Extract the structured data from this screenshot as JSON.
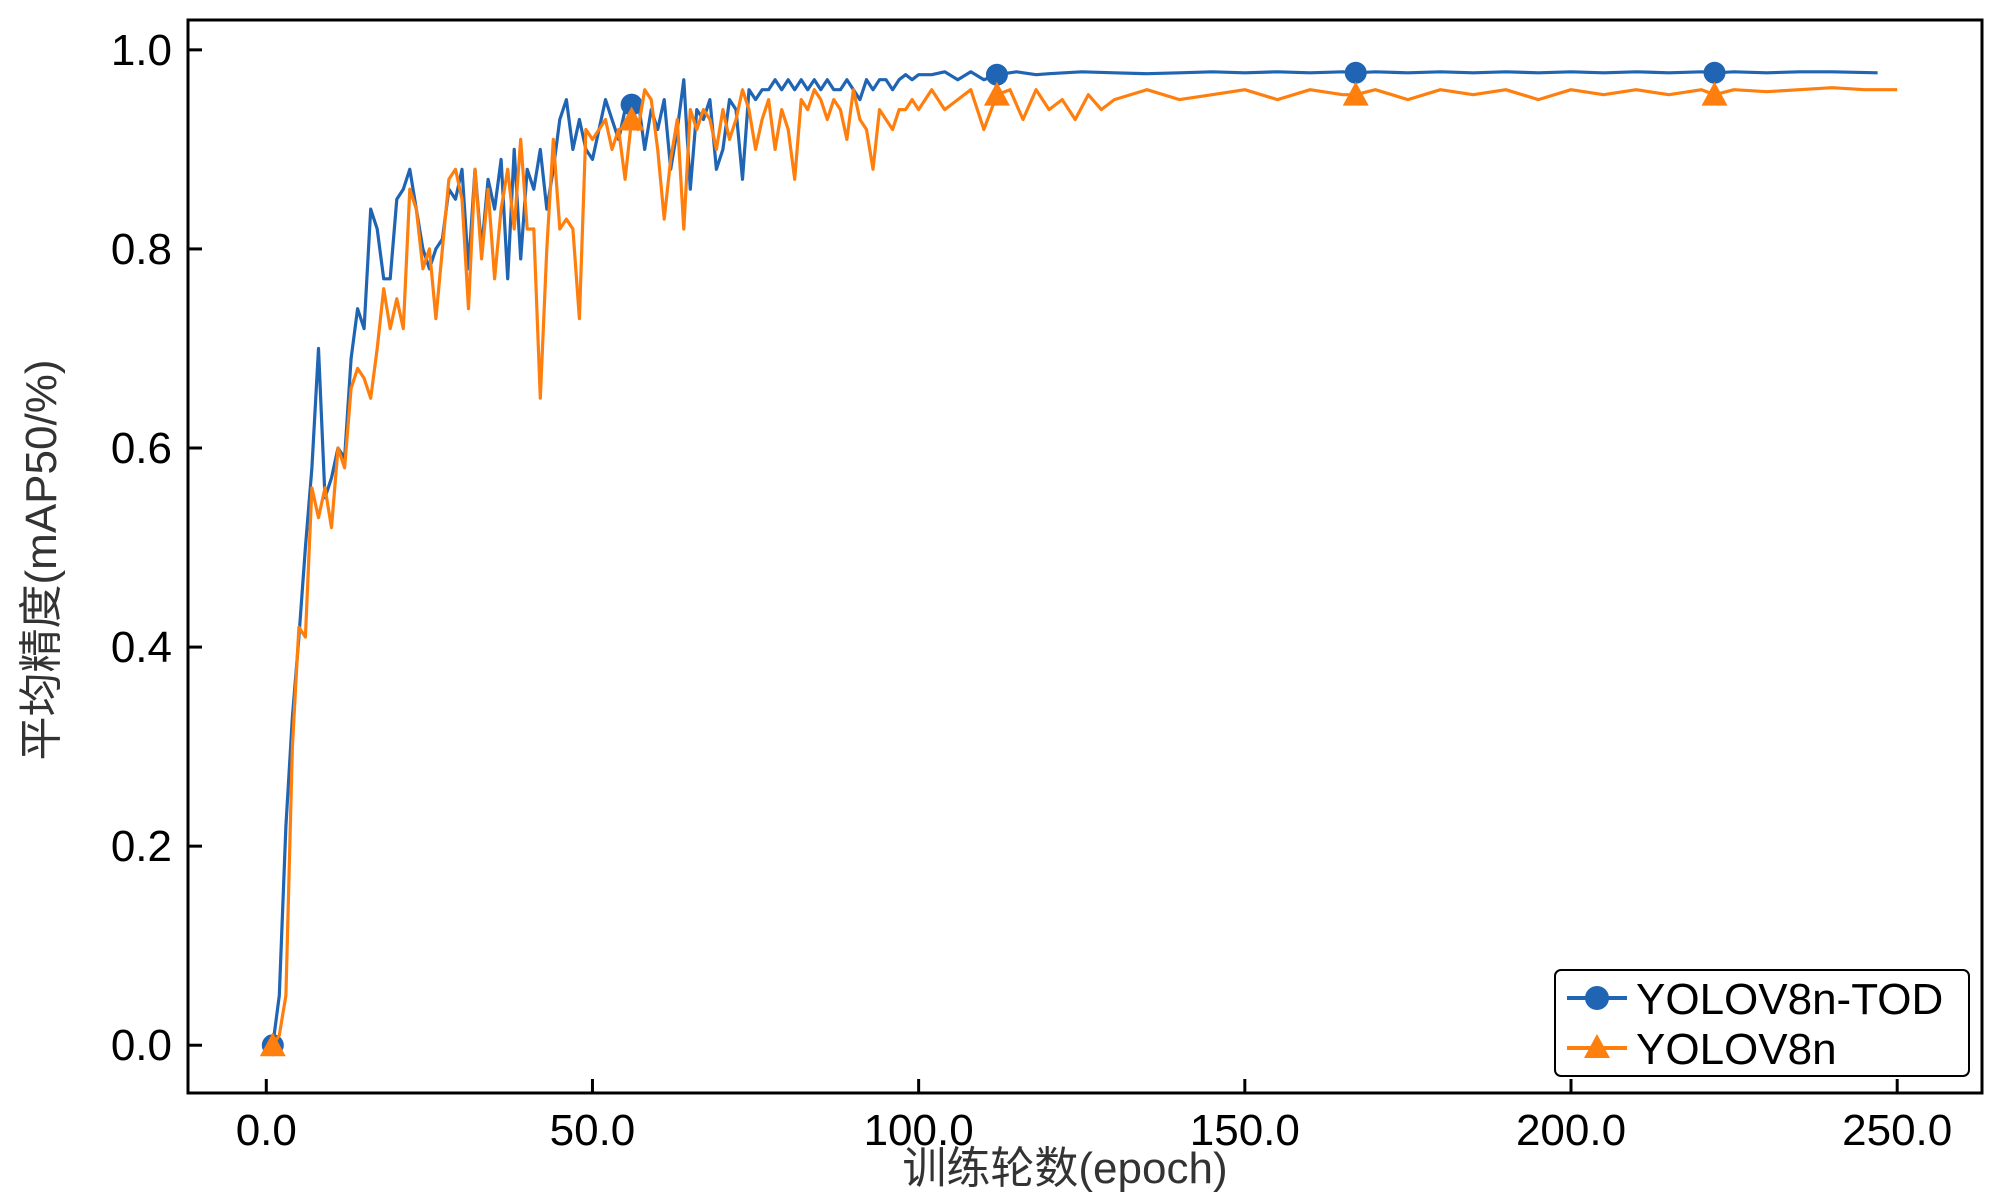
{
  "chart_data": {
    "type": "line",
    "title": "",
    "xlabel": "训练轮数(epoch)",
    "ylabel": "平均精度(mAP50/%)",
    "xlim": [
      -12,
      263
    ],
    "ylim": [
      -0.048,
      1.03
    ],
    "xticks": [
      0,
      50,
      100,
      150,
      200,
      250
    ],
    "xtick_labels": [
      "0.0",
      "50.0",
      "100.0",
      "150.0",
      "200.0",
      "250.0"
    ],
    "yticks": [
      0.0,
      0.2,
      0.4,
      0.6,
      0.8,
      1.0
    ],
    "ytick_labels": [
      "0.0",
      "0.2",
      "0.4",
      "0.6",
      "0.8",
      "1.0"
    ],
    "grid": false,
    "legend_position": "bottom-right",
    "series": [
      {
        "name": "YOLOV8n-TOD",
        "color": "#1f65b4",
        "marker": "circle",
        "marker_x": [
          1,
          56,
          112,
          167,
          222
        ],
        "x": [
          1,
          2,
          3,
          4,
          5,
          6,
          7,
          8,
          9,
          10,
          11,
          12,
          13,
          14,
          15,
          16,
          17,
          18,
          19,
          20,
          21,
          22,
          23,
          24,
          25,
          26,
          27,
          28,
          29,
          30,
          31,
          32,
          33,
          34,
          35,
          36,
          37,
          38,
          39,
          40,
          41,
          42,
          43,
          44,
          45,
          46,
          47,
          48,
          49,
          50,
          51,
          52,
          53,
          54,
          55,
          56,
          57,
          58,
          59,
          60,
          61,
          62,
          63,
          64,
          65,
          66,
          67,
          68,
          69,
          70,
          71,
          72,
          73,
          74,
          75,
          76,
          77,
          78,
          79,
          80,
          81,
          82,
          83,
          84,
          85,
          86,
          87,
          88,
          89,
          90,
          91,
          92,
          93,
          94,
          95,
          96,
          97,
          98,
          99,
          100,
          102,
          104,
          106,
          108,
          110,
          112,
          115,
          118,
          120,
          125,
          130,
          135,
          140,
          145,
          150,
          155,
          160,
          165,
          167,
          170,
          175,
          180,
          185,
          190,
          195,
          200,
          205,
          210,
          215,
          220,
          222,
          225,
          230,
          235,
          240,
          247
        ],
        "values": [
          0.0,
          0.05,
          0.22,
          0.33,
          0.41,
          0.5,
          0.58,
          0.7,
          0.55,
          0.57,
          0.6,
          0.59,
          0.69,
          0.74,
          0.72,
          0.84,
          0.82,
          0.77,
          0.77,
          0.85,
          0.86,
          0.88,
          0.84,
          0.8,
          0.78,
          0.8,
          0.81,
          0.86,
          0.85,
          0.88,
          0.78,
          0.88,
          0.8,
          0.87,
          0.84,
          0.89,
          0.77,
          0.9,
          0.79,
          0.88,
          0.86,
          0.9,
          0.84,
          0.88,
          0.93,
          0.95,
          0.9,
          0.93,
          0.9,
          0.89,
          0.92,
          0.95,
          0.93,
          0.91,
          0.94,
          0.945,
          0.95,
          0.9,
          0.94,
          0.92,
          0.95,
          0.88,
          0.92,
          0.97,
          0.86,
          0.94,
          0.93,
          0.95,
          0.88,
          0.9,
          0.95,
          0.94,
          0.87,
          0.96,
          0.95,
          0.96,
          0.96,
          0.97,
          0.96,
          0.97,
          0.96,
          0.97,
          0.96,
          0.97,
          0.96,
          0.97,
          0.96,
          0.96,
          0.97,
          0.96,
          0.95,
          0.97,
          0.96,
          0.97,
          0.97,
          0.96,
          0.97,
          0.975,
          0.97,
          0.975,
          0.975,
          0.978,
          0.97,
          0.978,
          0.97,
          0.975,
          0.978,
          0.975,
          0.976,
          0.978,
          0.977,
          0.976,
          0.977,
          0.978,
          0.977,
          0.978,
          0.977,
          0.978,
          0.977,
          0.978,
          0.977,
          0.978,
          0.977,
          0.978,
          0.977,
          0.978,
          0.977,
          0.978,
          0.977,
          0.978,
          0.977,
          0.978,
          0.977,
          0.978,
          0.978,
          0.977
        ]
      },
      {
        "name": "YOLOV8n",
        "color": "#ff7f0e",
        "marker": "triangle",
        "marker_x": [
          1,
          56,
          112,
          167,
          222
        ],
        "x": [
          1,
          2,
          3,
          4,
          5,
          6,
          7,
          8,
          9,
          10,
          11,
          12,
          13,
          14,
          15,
          16,
          17,
          18,
          19,
          20,
          21,
          22,
          23,
          24,
          25,
          26,
          27,
          28,
          29,
          30,
          31,
          32,
          33,
          34,
          35,
          36,
          37,
          38,
          39,
          40,
          41,
          42,
          43,
          44,
          45,
          46,
          47,
          48,
          49,
          50,
          51,
          52,
          53,
          54,
          55,
          56,
          57,
          58,
          59,
          60,
          61,
          62,
          63,
          64,
          65,
          66,
          67,
          68,
          69,
          70,
          71,
          72,
          73,
          74,
          75,
          76,
          77,
          78,
          79,
          80,
          81,
          82,
          83,
          84,
          85,
          86,
          87,
          88,
          89,
          90,
          91,
          92,
          93,
          94,
          95,
          96,
          97,
          98,
          99,
          100,
          102,
          104,
          106,
          108,
          110,
          112,
          114,
          116,
          118,
          120,
          122,
          124,
          126,
          128,
          130,
          135,
          140,
          145,
          150,
          155,
          160,
          165,
          167,
          170,
          175,
          180,
          185,
          190,
          195,
          200,
          205,
          210,
          215,
          220,
          222,
          225,
          230,
          235,
          240,
          245,
          250
        ],
        "values": [
          0.0,
          0.01,
          0.05,
          0.3,
          0.42,
          0.41,
          0.56,
          0.53,
          0.56,
          0.52,
          0.6,
          0.58,
          0.66,
          0.68,
          0.67,
          0.65,
          0.7,
          0.76,
          0.72,
          0.75,
          0.72,
          0.86,
          0.84,
          0.78,
          0.8,
          0.73,
          0.8,
          0.87,
          0.88,
          0.85,
          0.74,
          0.88,
          0.79,
          0.86,
          0.77,
          0.84,
          0.88,
          0.82,
          0.91,
          0.82,
          0.82,
          0.65,
          0.8,
          0.91,
          0.82,
          0.83,
          0.82,
          0.73,
          0.92,
          0.91,
          0.92,
          0.93,
          0.9,
          0.92,
          0.87,
          0.93,
          0.92,
          0.96,
          0.95,
          0.9,
          0.83,
          0.89,
          0.93,
          0.82,
          0.94,
          0.92,
          0.94,
          0.93,
          0.9,
          0.94,
          0.91,
          0.93,
          0.96,
          0.94,
          0.9,
          0.93,
          0.95,
          0.9,
          0.94,
          0.92,
          0.87,
          0.95,
          0.94,
          0.96,
          0.95,
          0.93,
          0.95,
          0.94,
          0.91,
          0.96,
          0.93,
          0.92,
          0.88,
          0.94,
          0.93,
          0.92,
          0.94,
          0.94,
          0.95,
          0.94,
          0.96,
          0.94,
          0.95,
          0.96,
          0.92,
          0.955,
          0.96,
          0.93,
          0.96,
          0.94,
          0.95,
          0.93,
          0.955,
          0.94,
          0.95,
          0.96,
          0.95,
          0.955,
          0.96,
          0.95,
          0.96,
          0.955,
          0.955,
          0.96,
          0.95,
          0.96,
          0.955,
          0.96,
          0.95,
          0.96,
          0.955,
          0.96,
          0.955,
          0.96,
          0.955,
          0.96,
          0.958,
          0.96,
          0.962,
          0.96,
          0.96
        ]
      }
    ]
  }
}
